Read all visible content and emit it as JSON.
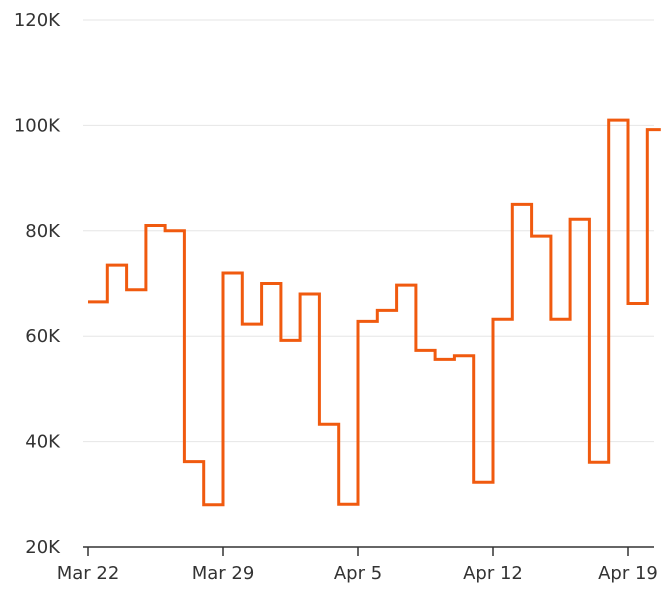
{
  "chart_data": {
    "type": "line",
    "step": true,
    "title": "",
    "xlabel": "",
    "ylabel": "",
    "x_tick_labels": [
      "Mar 22",
      "Mar 29",
      "Apr 5",
      "Apr 12",
      "Apr 19"
    ],
    "y_tick_labels": [
      "20K",
      "40K",
      "60K",
      "80K",
      "100K",
      "120K"
    ],
    "y_tick_values": [
      20000,
      40000,
      60000,
      80000,
      100000,
      120000
    ],
    "ylim": [
      20000,
      120000
    ],
    "xlim": [
      "2020-03-22",
      "2020-04-20"
    ],
    "grid": true,
    "legend": "none",
    "colors": {
      "series": "#f05a0f",
      "grid": "#e6e6e6",
      "axis": "#333333"
    },
    "series": [
      {
        "x": [
          "2020-03-22",
          "2020-03-23",
          "2020-03-24",
          "2020-03-25",
          "2020-03-26",
          "2020-03-27",
          "2020-03-28",
          "2020-03-29",
          "2020-03-30",
          "2020-03-31",
          "2020-04-01",
          "2020-04-02",
          "2020-04-03",
          "2020-04-04",
          "2020-04-05",
          "2020-04-06",
          "2020-04-07",
          "2020-04-08",
          "2020-04-09",
          "2020-04-10",
          "2020-04-11",
          "2020-04-12",
          "2020-04-13",
          "2020-04-14",
          "2020-04-15",
          "2020-04-16",
          "2020-04-17",
          "2020-04-18",
          "2020-04-19",
          "2020-04-20"
        ],
        "values": [
          66500,
          73500,
          68800,
          81000,
          80000,
          36200,
          28000,
          72000,
          62300,
          70000,
          59200,
          68000,
          43300,
          28100,
          62800,
          64900,
          69700,
          57300,
          55600,
          56300,
          32300,
          63200,
          85000,
          79000,
          63200,
          82200,
          36100,
          101000,
          66200,
          99200
        ]
      }
    ]
  }
}
